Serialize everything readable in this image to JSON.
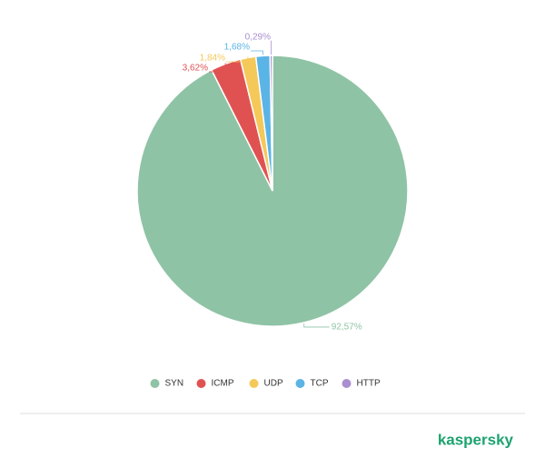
{
  "chart_data": {
    "type": "pie",
    "categories": [
      "SYN",
      "ICMP",
      "UDP",
      "TCP",
      "HTTP"
    ],
    "values": [
      92.57,
      3.62,
      1.84,
      1.68,
      0.29
    ],
    "value_labels": [
      "92,57%",
      "3,62%",
      "1,84%",
      "1,68%",
      "0,29%"
    ],
    "colors": [
      "#8fc3a5",
      "#e05252",
      "#f5c85a",
      "#5ab4e6",
      "#a98fcf"
    ],
    "legend": "bottom"
  },
  "brand": "kaspersky"
}
